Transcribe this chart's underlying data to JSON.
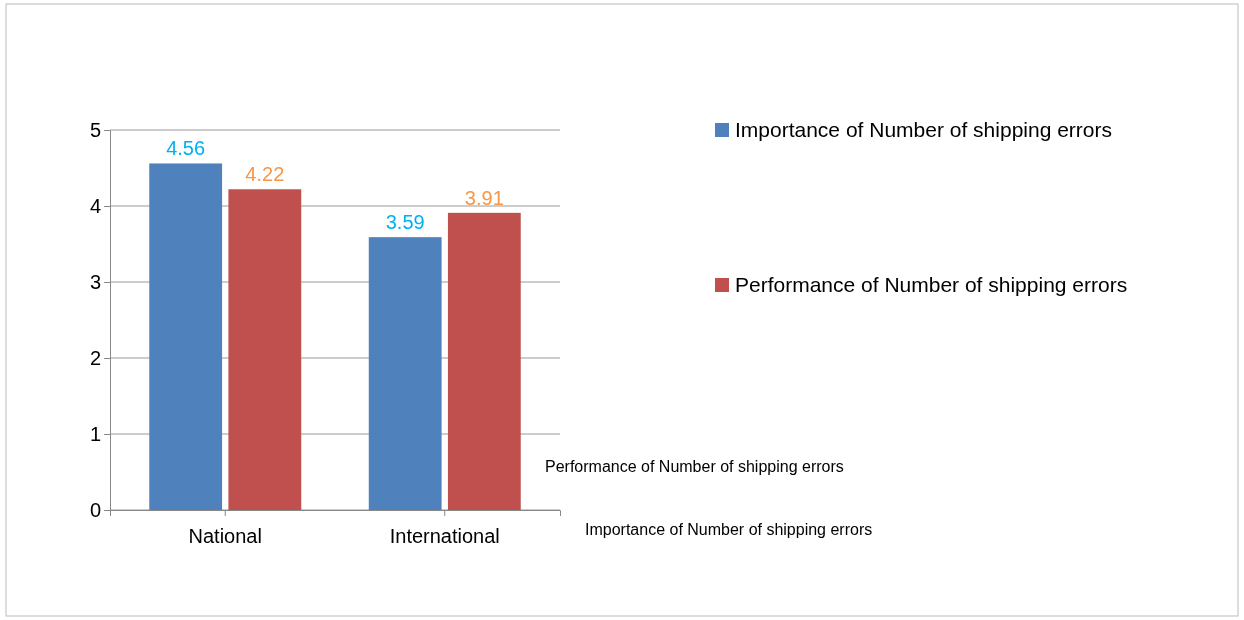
{
  "chart_data": {
    "type": "bar",
    "categories": [
      "National",
      "International"
    ],
    "series": [
      {
        "name": "Importance of Number of shipping errors",
        "color": "#4f81bd",
        "values": [
          4.56,
          3.59
        ]
      },
      {
        "name": "Performance of Number of shipping errors",
        "color": "#c0504d",
        "values": [
          4.22,
          3.91
        ]
      }
    ],
    "ylim": [
      0,
      5
    ],
    "yticks": [
      0,
      1,
      2,
      3,
      4,
      5
    ],
    "grid": "y",
    "legend": "right",
    "data_labels": true
  }
}
